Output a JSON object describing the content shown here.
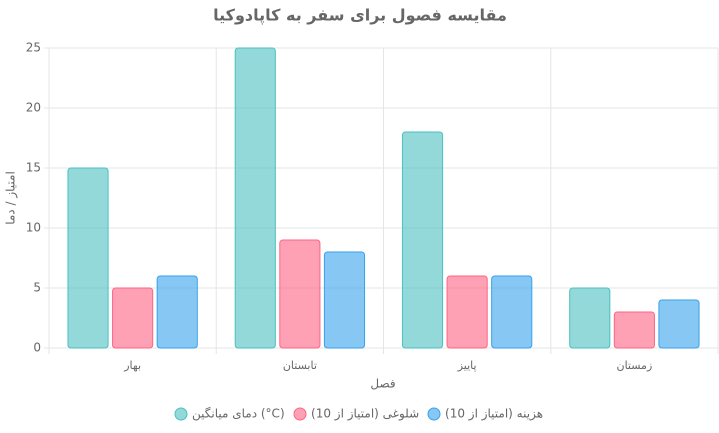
{
  "chart_data": {
    "type": "bar",
    "title": "مقایسه فصول برای سفر به کاپادوکیا",
    "x_label": "فصل",
    "y_label": "امتیاز / دما",
    "categories": [
      "بهار",
      "تابستان",
      "پاییز",
      "زمستان"
    ],
    "series": [
      {
        "name": "دمای میانگین (°C)",
        "color": "#4bc0c0",
        "values": [
          15,
          25,
          18,
          5
        ]
      },
      {
        "name": "شلوغی (امتیاز از 10)",
        "color": "#ff6384",
        "values": [
          5,
          9,
          6,
          3
        ]
      },
      {
        "name": "هزینه (امتیاز از 10)",
        "color": "#36a2eb",
        "values": [
          6,
          8,
          6,
          4
        ]
      }
    ],
    "ylim": [
      0,
      25
    ],
    "yticks": [
      0,
      5,
      10,
      15,
      20,
      25
    ],
    "grid": true,
    "legend": "bottom"
  }
}
